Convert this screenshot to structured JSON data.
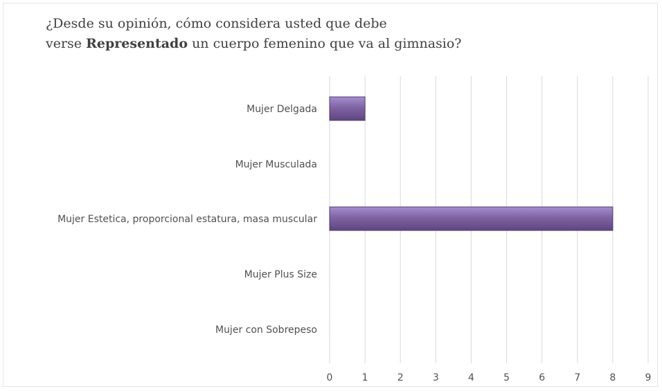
{
  "title": {
    "line1": "¿Desde su opinión, cómo considera usted que debe",
    "line2_prefix": "verse ",
    "line2_bold": "Representado",
    "line2_suffix": " un cuerpo femenino que va al gimnasio?"
  },
  "chart_data": {
    "type": "bar",
    "orientation": "horizontal",
    "categories": [
      "Mujer Delgada",
      "Mujer Musculada",
      "Mujer Estetica, proporcional estatura, masa muscular",
      "Mujer Plus Size",
      "Mujer con Sobrepeso"
    ],
    "values": [
      1,
      0,
      8,
      0,
      0
    ],
    "xlim": [
      0,
      9
    ],
    "xticks": [
      "0",
      "1",
      "2",
      "3",
      "4",
      "5",
      "6",
      "7",
      "8",
      "9"
    ],
    "grid": true,
    "bar_color": "#8064a2",
    "bar_color_light": "#a58ed0",
    "bar_color_dark": "#5e4580"
  }
}
